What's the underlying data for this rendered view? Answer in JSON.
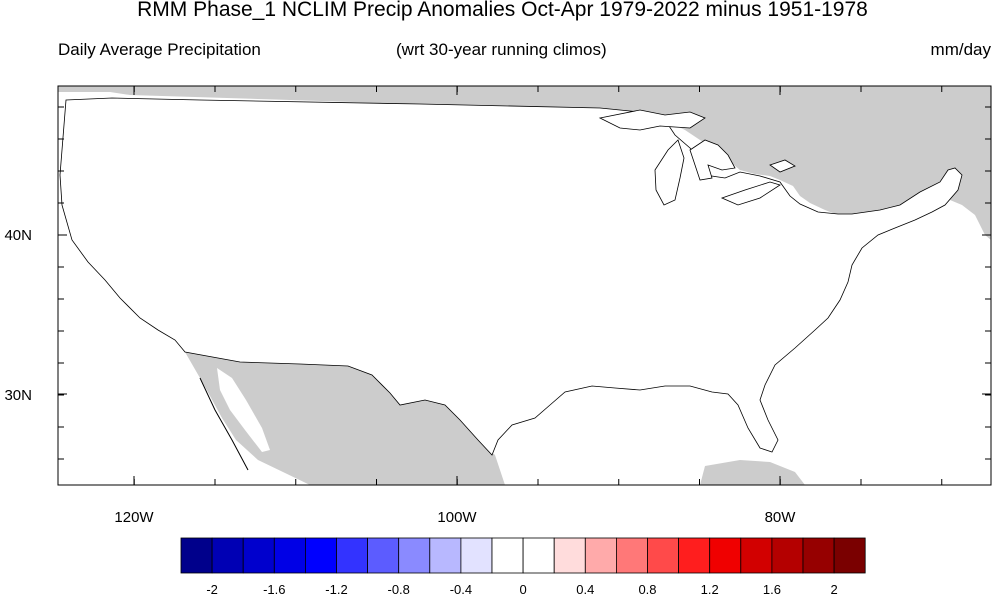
{
  "title": "RMM Phase_1 NCLIM Precip Anomalies Oct-Apr 1979-2022 minus 1951-1978",
  "subtitle_left": "Daily Average Precipitation",
  "subtitle_center": "(wrt 30-year running climos)",
  "subtitle_right": "mm/day",
  "axes": {
    "lon_labels": [
      "120W",
      "100W",
      "80W"
    ],
    "lat_labels": [
      "40N",
      "30N"
    ]
  },
  "colorbar": {
    "labels": [
      "-2",
      "-1.6",
      "-1.2",
      "-0.8",
      "-0.4",
      "0",
      "0.4",
      "0.8",
      "1.2",
      "1.6",
      "2"
    ],
    "colors": [
      "#00008b",
      "#0000b4",
      "#0000cd",
      "#0000e6",
      "#0000ff",
      "#3333ff",
      "#5c5cff",
      "#8a8aff",
      "#b8b8ff",
      "#e2e2ff",
      "#ffffff",
      "#ffffff",
      "#ffdcdc",
      "#ffaaaa",
      "#ff7878",
      "#ff4a4a",
      "#ff1e1e",
      "#f00000",
      "#d20000",
      "#b40000",
      "#960000",
      "#7a0000"
    ]
  },
  "colors": {
    "land_mask": "#cccccc",
    "ocean": "#ffffff",
    "coastline": "#000000"
  }
}
